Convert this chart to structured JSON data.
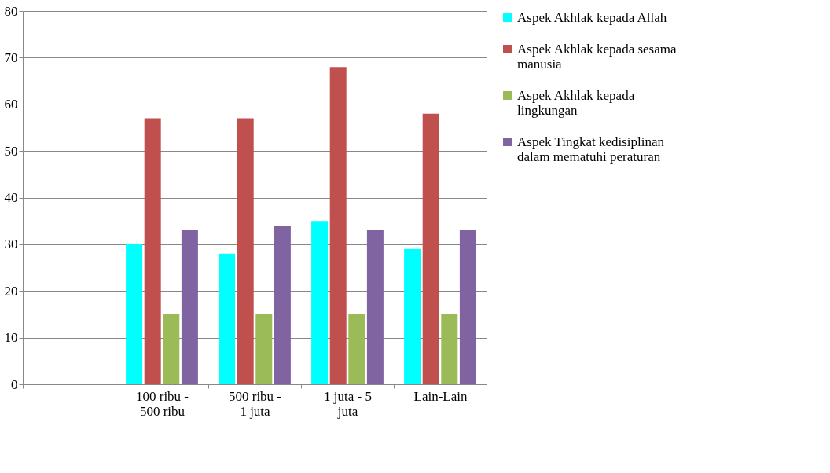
{
  "chart_data": {
    "type": "bar",
    "categories": [
      null,
      "100 ribu - 500 ribu",
      "500 ribu - 1 juta",
      "1 juta - 5 juta",
      "Lain-Lain"
    ],
    "series": [
      {
        "name": "Aspek Akhlak kepada Allah",
        "color": "#00ffff",
        "values": [
          null,
          30,
          28,
          35,
          29
        ]
      },
      {
        "name": "Aspek Akhlak kepada sesama manusia",
        "color": "#c0504d",
        "values": [
          null,
          57,
          57,
          68,
          58
        ]
      },
      {
        "name": "Aspek Akhlak kepada lingkungan",
        "color": "#9bbb59",
        "values": [
          null,
          15,
          15,
          15,
          15
        ]
      },
      {
        "name": "Aspek Tingkat kedisiplinan dalam mematuhi peraturan",
        "color": "#8064a2",
        "values": [
          null,
          33,
          34,
          33,
          33
        ]
      }
    ],
    "ylim": [
      0,
      80
    ],
    "yticks": [
      0,
      10,
      20,
      30,
      40,
      50,
      60,
      70,
      80
    ],
    "grid": "y",
    "legend": "right"
  }
}
